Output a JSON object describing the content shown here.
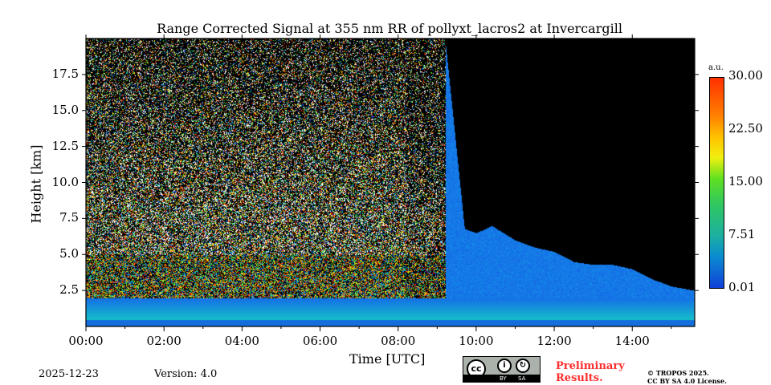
{
  "chart_data": {
    "type": "heatmap",
    "title": "Range Corrected Signal at 355 nm RR of pollyxt_lacros2 at Invercargill",
    "xlabel": "Time [UTC]",
    "ylabel": "Height [km]",
    "xlim_hours": [
      0,
      15.6
    ],
    "ylim": [
      0,
      20
    ],
    "x_ticks": [
      "00:00",
      "02:00",
      "04:00",
      "06:00",
      "08:00",
      "10:00",
      "12:00",
      "14:00"
    ],
    "y_ticks": [
      "2.5",
      "5.0",
      "7.5",
      "10.0",
      "12.5",
      "15.0",
      "17.5"
    ],
    "colorbar": {
      "label": "a.u.",
      "range": [
        0.01,
        30.0
      ],
      "ticks": [
        "30.00",
        "22.50",
        "15.00",
        "7.51",
        "0.01"
      ]
    },
    "approx_signal_top_km": {
      "time_hours": [
        0,
        8.2,
        9.2,
        9.7,
        10.0,
        10.4,
        11.0,
        11.5,
        12.0,
        12.5,
        13.0,
        13.5,
        14.0,
        14.5,
        15.0,
        15.6
      ],
      "height_km": [
        20,
        20,
        20,
        6.8,
        6.5,
        7.0,
        6.0,
        5.5,
        5.2,
        4.5,
        4.3,
        4.3,
        4.0,
        3.3,
        2.8,
        2.5
      ]
    },
    "colors": {
      "noise_white": "#ffffff",
      "background": "#000000",
      "low": "#1040d8",
      "high": "#ff3000"
    }
  },
  "footer": {
    "date": "2025-12-23",
    "version": "Version: 4.0",
    "preliminary": "Preliminary",
    "results": "Results.",
    "copyright": "© TROPOS 2025.",
    "license": "CC BY SA 4.0 License.",
    "cc_badge": {
      "cc": "cc",
      "by": "BY",
      "sa": "SA"
    }
  }
}
